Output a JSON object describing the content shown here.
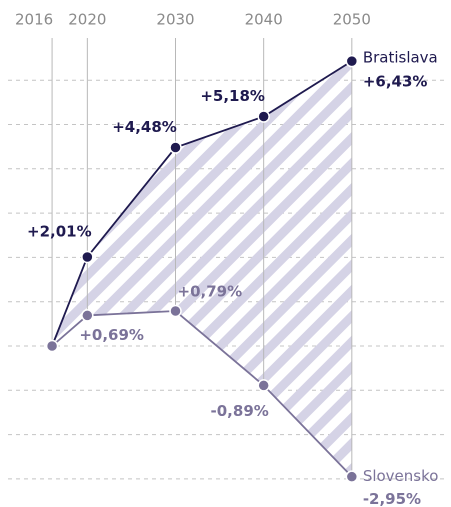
{
  "chart_data": {
    "type": "line",
    "x": [
      2016,
      2020,
      2030,
      2040,
      2050
    ],
    "xticks": [
      2016,
      2020,
      2030,
      2040,
      2050
    ],
    "xlim": [
      2011,
      2061
    ],
    "ylim": [
      -3.5,
      7.5
    ],
    "yticks": [
      -3,
      -2,
      -1,
      0,
      1,
      2,
      3,
      4,
      5,
      6
    ],
    "grid": true,
    "series": [
      {
        "name": "Bratislava",
        "color": "#1f1a4f",
        "values": [
          0,
          2.01,
          4.48,
          5.18,
          6.43
        ],
        "value_labels": [
          null,
          "+2,01%",
          "+4,48%",
          "+5,18%",
          "+6,43%"
        ]
      },
      {
        "name": "Slovensko",
        "color": "#7b7399",
        "values": [
          0,
          0.69,
          0.79,
          -0.89,
          -2.95
        ],
        "value_labels": [
          null,
          "+0,69%",
          "+0,79%",
          "-0,89%",
          "-2,95%"
        ]
      }
    ]
  }
}
